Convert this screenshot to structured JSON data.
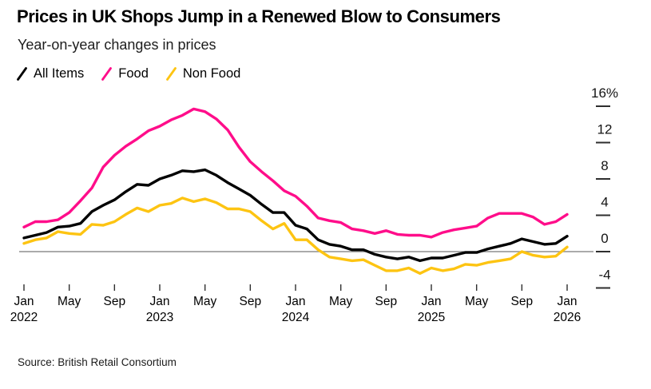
{
  "source": {
    "label": "Source: British Retail Consortium"
  },
  "chart_data": {
    "type": "line",
    "title": "Prices in UK Shops Jump in a Renewed Blow to Consumers",
    "subtitle": "Year-on-year changes in prices",
    "unit": "percent, year-on-year change",
    "x_start": "2022-01",
    "x_end": "2026-01",
    "x_step": "month",
    "grid": false,
    "legend_position": "top-left",
    "colors": {
      "zero_line": "#8f8f8f",
      "tick": "#2e2e2e",
      "axis_label": "#141414"
    },
    "x_axis": {
      "ticks": [
        {
          "month": "Jan",
          "year": "2022"
        },
        {
          "month": "May"
        },
        {
          "month": "Sep"
        },
        {
          "month": "Jan",
          "year": "2023"
        },
        {
          "month": "May"
        },
        {
          "month": "Sep"
        },
        {
          "month": "Jan",
          "year": "2024"
        },
        {
          "month": "May"
        },
        {
          "month": "Sep"
        },
        {
          "month": "Jan",
          "year": "2025"
        },
        {
          "month": "May"
        },
        {
          "month": "Sep"
        },
        {
          "month": "Jan",
          "year": "2026"
        }
      ]
    },
    "y_axis": {
      "side": "right",
      "range": [
        -5.5,
        17.5
      ],
      "zero_baseline": true,
      "ticks": [
        {
          "v": 16,
          "label": "16%"
        },
        {
          "v": 12,
          "label": "12"
        },
        {
          "v": 8,
          "label": "8"
        },
        {
          "v": 4,
          "label": "4"
        },
        {
          "v": 0,
          "label": "0"
        },
        {
          "v": -4,
          "label": "-4"
        }
      ]
    },
    "series": [
      {
        "name": "All Items",
        "color": "#000000",
        "values": [
          1.5,
          1.8,
          2.1,
          2.7,
          2.8,
          3.1,
          4.4,
          5.1,
          5.7,
          6.6,
          7.4,
          7.3,
          8.0,
          8.4,
          8.9,
          8.8,
          9.0,
          8.4,
          7.6,
          6.9,
          6.2,
          5.2,
          4.3,
          4.3,
          2.9,
          2.5,
          1.3,
          0.8,
          0.6,
          0.2,
          0.2,
          -0.3,
          -0.6,
          -0.8,
          -0.6,
          -1.0,
          -0.7,
          -0.7,
          -0.4,
          -0.1,
          -0.1,
          0.3,
          0.6,
          0.9,
          1.4,
          1.1,
          0.8,
          0.9,
          1.7
        ]
      },
      {
        "name": "Food",
        "color": "#ff0d8a",
        "values": [
          2.7,
          3.3,
          3.3,
          3.5,
          4.3,
          5.6,
          7.0,
          9.3,
          10.6,
          11.6,
          12.4,
          13.3,
          13.8,
          14.5,
          15.0,
          15.7,
          15.4,
          14.6,
          13.4,
          11.5,
          9.9,
          8.8,
          7.8,
          6.7,
          6.1,
          5.0,
          3.7,
          3.4,
          3.2,
          2.5,
          2.3,
          2.0,
          2.3,
          1.9,
          1.8,
          1.8,
          1.6,
          2.1,
          2.4,
          2.6,
          2.8,
          3.7,
          4.2,
          4.2,
          4.2,
          3.8,
          3.0,
          3.3,
          4.1
        ]
      },
      {
        "name": "Non Food",
        "color": "#fdc412",
        "values": [
          0.9,
          1.3,
          1.5,
          2.2,
          2.0,
          1.9,
          3.0,
          2.9,
          3.3,
          4.1,
          4.8,
          4.4,
          5.1,
          5.3,
          5.9,
          5.5,
          5.8,
          5.4,
          4.7,
          4.7,
          4.4,
          3.4,
          2.5,
          3.1,
          1.3,
          1.3,
          0.2,
          -0.6,
          -0.8,
          -1.0,
          -0.9,
          -1.5,
          -2.1,
          -2.1,
          -1.8,
          -2.4,
          -1.8,
          -2.1,
          -1.9,
          -1.4,
          -1.5,
          -1.2,
          -1.0,
          -0.8,
          0.0,
          -0.4,
          -0.6,
          -0.5,
          0.5
        ]
      }
    ]
  }
}
